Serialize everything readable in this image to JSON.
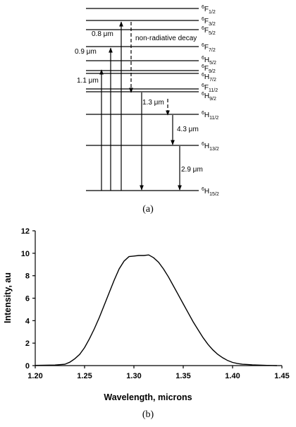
{
  "diagram": {
    "caption": "(a)",
    "levels": [
      {
        "sup": "6",
        "base": "F",
        "sub": "1/2"
      },
      {
        "sup": "6",
        "base": "F",
        "sub": "3/2"
      },
      {
        "sup": "6",
        "base": "F",
        "sub": "5/2"
      },
      {
        "sup": "6",
        "base": "F",
        "sub": "7/2"
      },
      {
        "sup": "6",
        "base": "H",
        "sub": "5/2"
      },
      {
        "sup": "6",
        "base": "F",
        "sub": "9/2"
      },
      {
        "sup": "6",
        "base": "H",
        "sub": "7/2"
      },
      {
        "sup": "6",
        "base": "F",
        "sub": "11/2"
      },
      {
        "sup": "6",
        "base": "H",
        "sub": "9/2"
      },
      {
        "sup": "6",
        "base": "H",
        "sub": "11/2"
      },
      {
        "sup": "6",
        "base": "H",
        "sub": "13/2"
      },
      {
        "sup": "6",
        "base": "H",
        "sub": "15/2"
      }
    ],
    "pump_labels": [
      "0.8 μm",
      "0.9 μm",
      "1.1 μm"
    ],
    "nonrad_label": "non-radiative decay",
    "emission_labels": [
      "1.3 μm",
      "4.3 μm",
      "2.9 μm"
    ]
  },
  "chart_data": {
    "type": "line",
    "caption": "(b)",
    "xlabel": "Wavelength, microns",
    "ylabel": "Intensity, au",
    "xlim": [
      1.2,
      1.45
    ],
    "ylim": [
      0,
      12
    ],
    "xticks": [
      "1.20",
      "1.25",
      "1.30",
      "1.35",
      "1.40",
      "1.45"
    ],
    "yticks": [
      "0",
      "2",
      "4",
      "6",
      "8",
      "10",
      "12"
    ],
    "x": [
      1.2,
      1.21,
      1.22,
      1.23,
      1.235,
      1.24,
      1.245,
      1.25,
      1.255,
      1.26,
      1.265,
      1.27,
      1.275,
      1.28,
      1.285,
      1.29,
      1.295,
      1.3,
      1.305,
      1.31,
      1.315,
      1.32,
      1.325,
      1.33,
      1.335,
      1.34,
      1.345,
      1.35,
      1.355,
      1.36,
      1.365,
      1.37,
      1.375,
      1.38,
      1.385,
      1.39,
      1.395,
      1.4,
      1.405,
      1.41,
      1.415,
      1.42,
      1.425,
      1.43,
      1.435,
      1.44,
      1.445
    ],
    "y": [
      0.02,
      0.03,
      0.05,
      0.12,
      0.3,
      0.6,
      1.0,
      1.6,
      2.4,
      3.3,
      4.3,
      5.4,
      6.5,
      7.6,
      8.6,
      9.3,
      9.7,
      9.75,
      9.8,
      9.8,
      9.85,
      9.6,
      9.2,
      8.6,
      7.9,
      7.1,
      6.3,
      5.5,
      4.7,
      3.9,
      3.2,
      2.5,
      1.9,
      1.4,
      1.0,
      0.7,
      0.45,
      0.28,
      0.18,
      0.12,
      0.1,
      0.07,
      0.05,
      0.03,
      0.02,
      0.01,
      0.0
    ]
  }
}
